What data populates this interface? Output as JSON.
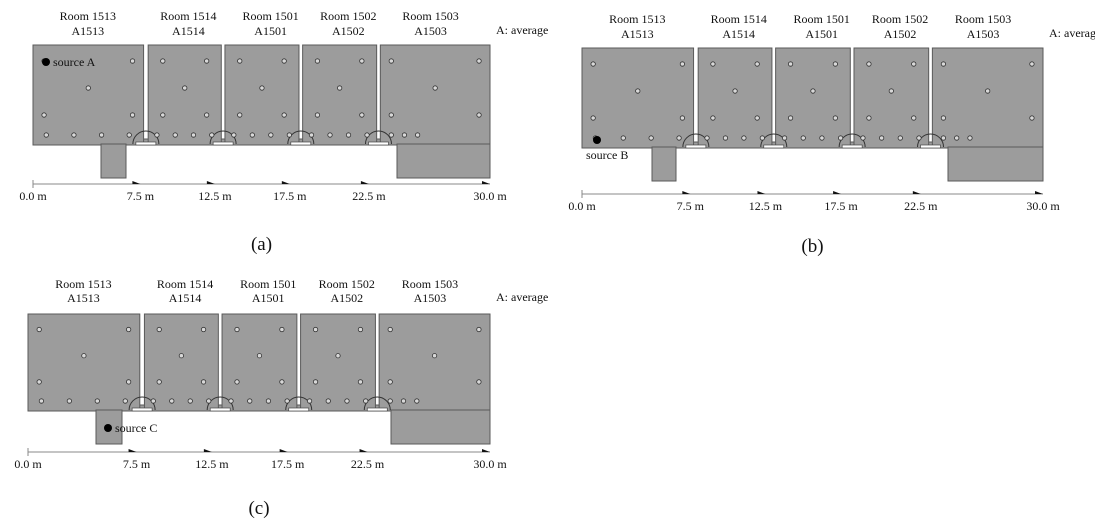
{
  "rooms": [
    {
      "name": "Room 1513",
      "code": "A1513"
    },
    {
      "name": "Room 1514",
      "code": "A1514"
    },
    {
      "name": "Room 1501",
      "code": "A1501"
    },
    {
      "name": "Room 1502",
      "code": "A1502"
    },
    {
      "name": "Room 1503",
      "code": "A1503"
    }
  ],
  "legend": "A: average",
  "ticks": [
    "0.0 m",
    "7.5 m",
    "12.5 m",
    "17.5 m",
    "22.5 m",
    "30.0 m"
  ],
  "panels": [
    {
      "label": "(a)",
      "source": "source A"
    },
    {
      "label": "(b)",
      "source": "source B"
    },
    {
      "label": "(c)",
      "source": "source C"
    }
  ],
  "colors": {
    "room_fill": "#9c9c9c",
    "room_stroke": "#5a5a5a",
    "mic_fill": "#d8d8d8",
    "source": "#000000"
  }
}
